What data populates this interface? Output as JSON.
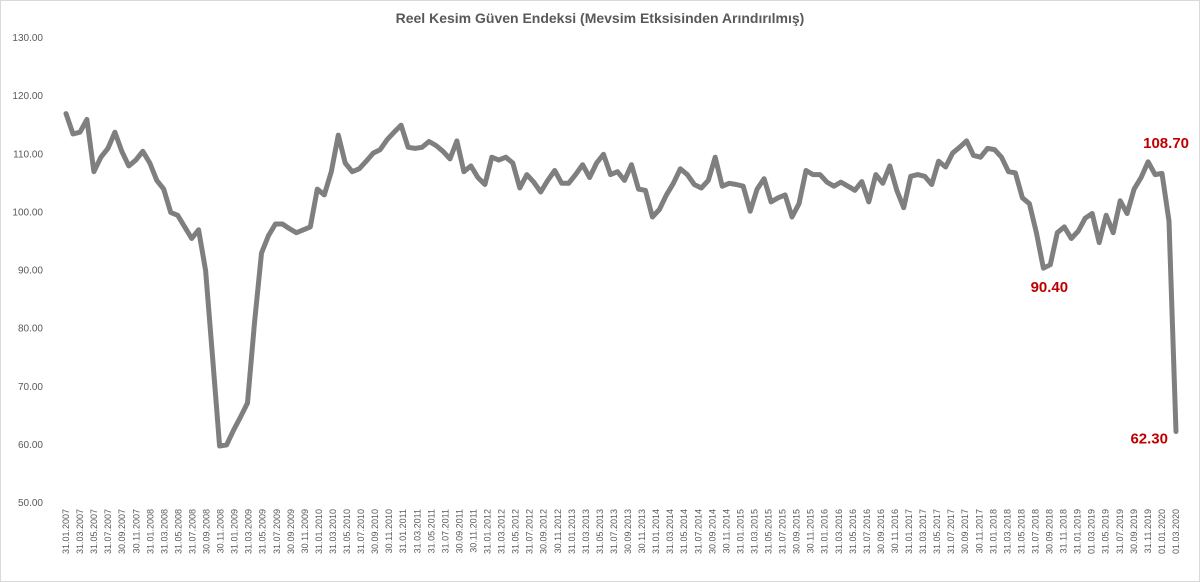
{
  "chart_data": {
    "type": "line",
    "title": "Reel Kesim Güven Endeksi (Mevsim Etksisinden Arındırılmış)",
    "xlabel": "",
    "ylabel": "",
    "ylim": [
      50,
      130
    ],
    "yticks": [
      "50.00",
      "60.00",
      "70.00",
      "80.00",
      "90.00",
      "100.00",
      "110.00",
      "120.00",
      "130.00"
    ],
    "grid": false,
    "line_color": "#7f7f7f",
    "annotation_color": "#c00000",
    "x_labels": [
      "31.01.2007",
      "31.03.2007",
      "31.05.2007",
      "31.07.2007",
      "30.09.2007",
      "30.11.2007",
      "31.01.2008",
      "31.03.2008",
      "31.05.2008",
      "31.07.2008",
      "30.09.2008",
      "30.11.2008",
      "31.01.2009",
      "31.03.2009",
      "31.05.2009",
      "31.07.2009",
      "30.09.2009",
      "30.11.2009",
      "31.01.2010",
      "31.03.2010",
      "31.05.2010",
      "31.07.2010",
      "30.09.2010",
      "30.11.2010",
      "31.01.2011",
      "31.03.2011",
      "31.05.2011",
      "31.07.2011",
      "30.09.2011",
      "30.11.2011",
      "31.01.2012",
      "31.03.2012",
      "31.05.2012",
      "31.07.2012",
      "30.09.2012",
      "30.11.2012",
      "31.01.2013",
      "31.03.2013",
      "31.05.2013",
      "31.07.2013",
      "30.09.2013",
      "30.11.2013",
      "31.01.2014",
      "31.03.2014",
      "31.05.2014",
      "31.07.2014",
      "30.09.2014",
      "30.11.2014",
      "31.01.2015",
      "31.03.2015",
      "31.05.2015",
      "31.07.2015",
      "30.09.2015",
      "30.11.2015",
      "31.01.2016",
      "31.03.2016",
      "31.05.2016",
      "31.07.2016",
      "30.09.2016",
      "30.11.2016",
      "31.01.2017",
      "31.03.2017",
      "31.05.2017",
      "31.07.2017",
      "30.09.2017",
      "30.11.2017",
      "31.01.2018",
      "31.03.2018",
      "31.05.2018",
      "31.07.2018",
      "30.09.2018",
      "31.11.2018",
      "31.01.2019",
      "01.03.2019",
      "31.05.2019",
      "31.07.2019",
      "30.09.2019",
      "31.11.2019",
      "01.01.2020",
      "01.03.2020"
    ],
    "values": [
      117.0,
      113.5,
      113.8,
      116.0,
      107.0,
      109.5,
      111.0,
      113.8,
      110.5,
      108.0,
      109.0,
      110.5,
      108.5,
      105.5,
      104.0,
      100.0,
      99.5,
      97.5,
      95.5,
      97.0,
      90.0,
      75.0,
      59.8,
      60.0,
      62.5,
      64.8,
      67.2,
      81.0,
      93.0,
      96.0,
      98.0,
      98.0,
      97.2,
      96.5,
      97.0,
      97.5,
      104.0,
      103.0,
      107.0,
      113.3,
      108.5,
      107.0,
      107.5,
      108.8,
      110.2,
      110.8,
      112.5,
      113.8,
      115.0,
      111.2,
      111.0,
      111.2,
      112.2,
      111.5,
      110.5,
      109.2,
      112.3,
      107.0,
      108.0,
      106.0,
      104.8,
      109.5,
      109.0,
      109.5,
      108.5,
      104.2,
      106.5,
      105.2,
      103.5,
      105.5,
      107.2,
      105.0,
      105.0,
      106.5,
      108.2,
      106.0,
      108.5,
      110.0,
      106.5,
      107.0,
      105.5,
      108.2,
      104.0,
      103.8,
      99.2,
      100.5,
      103.0,
      105.0,
      107.5,
      106.5,
      104.8,
      104.2,
      105.5,
      109.5,
      104.5,
      105.0,
      104.8,
      104.5,
      100.2,
      104.0,
      105.8,
      101.8,
      102.5,
      103.0,
      99.2,
      101.5,
      107.2,
      106.5,
      106.5,
      105.2,
      104.5,
      105.2,
      104.5,
      103.8,
      105.3,
      101.8,
      106.5,
      105.0,
      108.0,
      103.8,
      100.8,
      106.2,
      106.5,
      106.2,
      104.8,
      108.8,
      107.8,
      110.2,
      111.2,
      112.3,
      109.8,
      109.5,
      111.0,
      110.8,
      109.5,
      107.0,
      106.8,
      102.5,
      101.5,
      96.5,
      90.4,
      91.0,
      96.5,
      97.5,
      95.5,
      96.8,
      99.0,
      99.8,
      94.8,
      99.5,
      96.5,
      102.0,
      99.8,
      104.0,
      106.0,
      108.7,
      106.5,
      106.7,
      98.5,
      62.3
    ],
    "annotations": [
      {
        "text": "108.70",
        "value": 108.7
      },
      {
        "text": "90.40",
        "value": 90.4
      },
      {
        "text": "62.30",
        "value": 62.3
      }
    ]
  }
}
